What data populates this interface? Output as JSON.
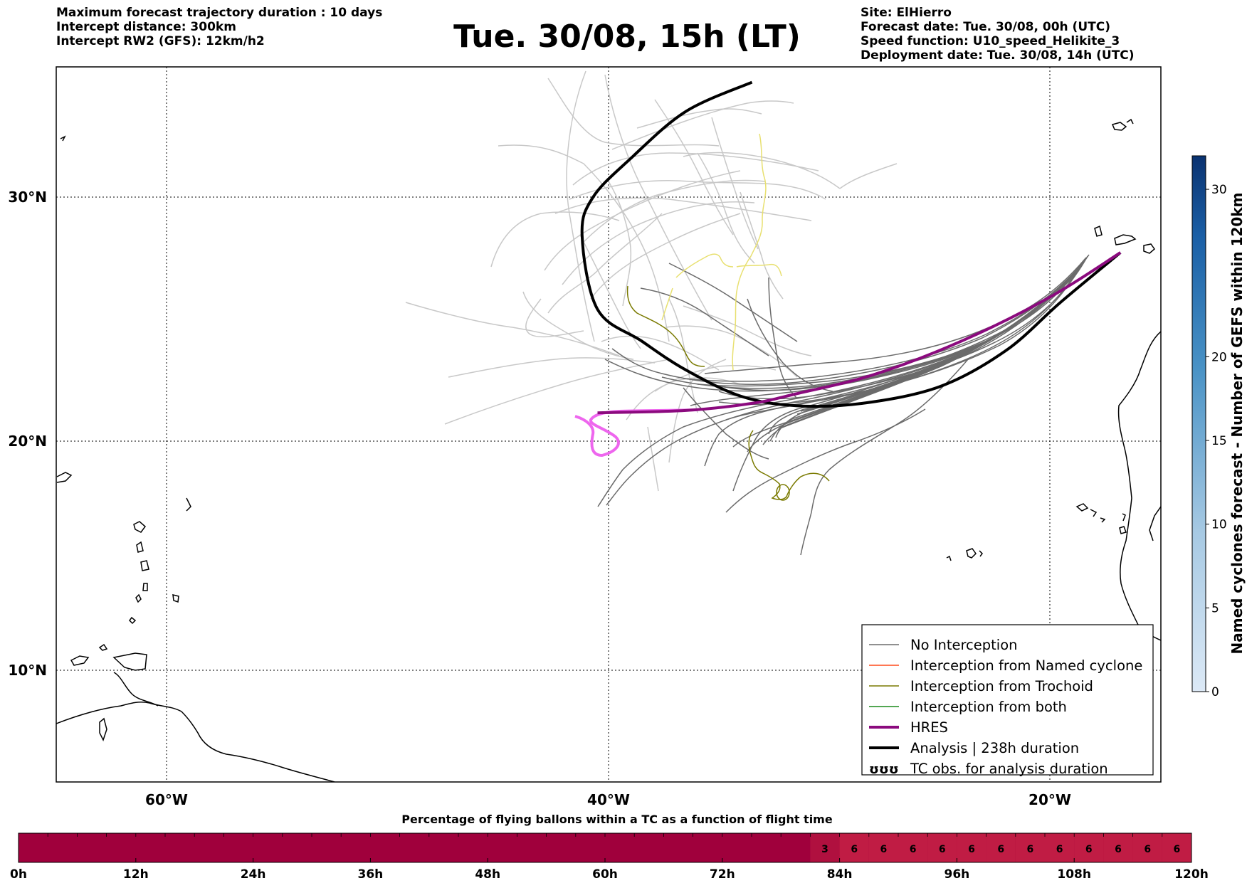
{
  "header": {
    "left_lines": [
      "Maximum forecast trajectory duration : 10 days",
      "Intercept distance: 300km",
      "Intercept RW2 (GFS):  12km/h2"
    ],
    "title": "Tue. 30/08, 15h (LT)",
    "right_lines": [
      "Site: ElHierro",
      "Forecast date: Tue. 30/08, 00h (UTC)",
      "Speed function: U10_speed_Helikite_3",
      "Deployment date: Tue. 30/08, 14h (UTC)"
    ]
  },
  "map": {
    "lat_labels": [
      "30°N",
      "20°N",
      "10°N"
    ],
    "lon_labels": [
      "60°W",
      "40°W",
      "20°W"
    ],
    "colors": {
      "ensemble": "#c8c8c8",
      "no_interception": "#6b6b6b",
      "named_cyclone": "#ff4a1a",
      "trochoid": "#7a7a00",
      "both": "#1a8a1a",
      "hres": "#8b0a7e",
      "hres_extension": "#ee66ee",
      "analysis": "#000000",
      "yellow_track": "#e8e070"
    }
  },
  "legend": {
    "items": [
      {
        "label": "No Interception",
        "color": "#6b6b6b",
        "width": 1.5
      },
      {
        "label": "Interception from Named cyclone",
        "color": "#ff4a1a",
        "width": 1.5
      },
      {
        "label": "Interception from Trochoid",
        "color": "#7a7a00",
        "width": 1.5
      },
      {
        "label": "Interception from both",
        "color": "#1a8a1a",
        "width": 1.5
      },
      {
        "label": "HRES",
        "color": "#8b0a7e",
        "width": 4
      },
      {
        "label": "Analysis | 238h duration",
        "color": "#000000",
        "width": 4
      },
      {
        "label": "TC obs. for analysis duration",
        "symbol": "ʊʊʊ"
      }
    ]
  },
  "colorbar": {
    "label": "Named cyclones forecast - Number of GEFS within 120km",
    "ticks": [
      "0",
      "5",
      "10",
      "15",
      "20",
      "30"
    ]
  },
  "timebar": {
    "title": "Percentage of flying ballons within a TC as a function of flight time",
    "tick_labels": [
      "0h",
      "12h",
      "24h",
      "36h",
      "48h",
      "60h",
      "72h",
      "84h",
      "96h",
      "108h",
      "120h"
    ],
    "cell_labels": [
      "3",
      "6",
      "6",
      "6",
      "6",
      "6",
      "6",
      "6",
      "6",
      "6",
      "6",
      "6",
      "6"
    ],
    "color_base": "#a0003c",
    "color_high": "#c01c44"
  },
  "chart_data": {
    "type": "line",
    "title": "Tue. 30/08, 15h (LT)",
    "xlim": [
      "65°W",
      "15°W"
    ],
    "ylim": [
      "5°N",
      "35°N"
    ],
    "series": [
      {
        "name": "HRES",
        "lon": [
          -16.8,
          -20,
          -24,
          -28,
          -31.5,
          -33.5,
          -36.5,
          -40.5
        ],
        "lat": [
          27.8,
          26,
          24.2,
          22.8,
          22,
          21.6,
          21.3,
          21.2
        ]
      },
      {
        "name": "Analysis | 238h duration",
        "lon": [
          -16.8,
          -19.5,
          -22,
          -25,
          -28.5,
          -31.5,
          -34,
          -36.5,
          -38.5,
          -40.5,
          -41.2,
          -40.7,
          -39,
          -36.5,
          -33.5
        ],
        "lat": [
          27.8,
          25.8,
          23.8,
          22.3,
          21.6,
          21.5,
          21.9,
          23,
          24.2,
          25.5,
          28.5,
          30,
          31.5,
          33.3,
          34.4
        ]
      }
    ],
    "timebar_percent": {
      "hours": [
        "81h",
        "84h",
        "87h",
        "90h",
        "93h",
        "96h",
        "99h",
        "102h",
        "105h",
        "108h",
        "111h",
        "114h",
        "117h"
      ],
      "values": [
        3,
        6,
        6,
        6,
        6,
        6,
        6,
        6,
        6,
        6,
        6,
        6,
        6
      ]
    }
  }
}
